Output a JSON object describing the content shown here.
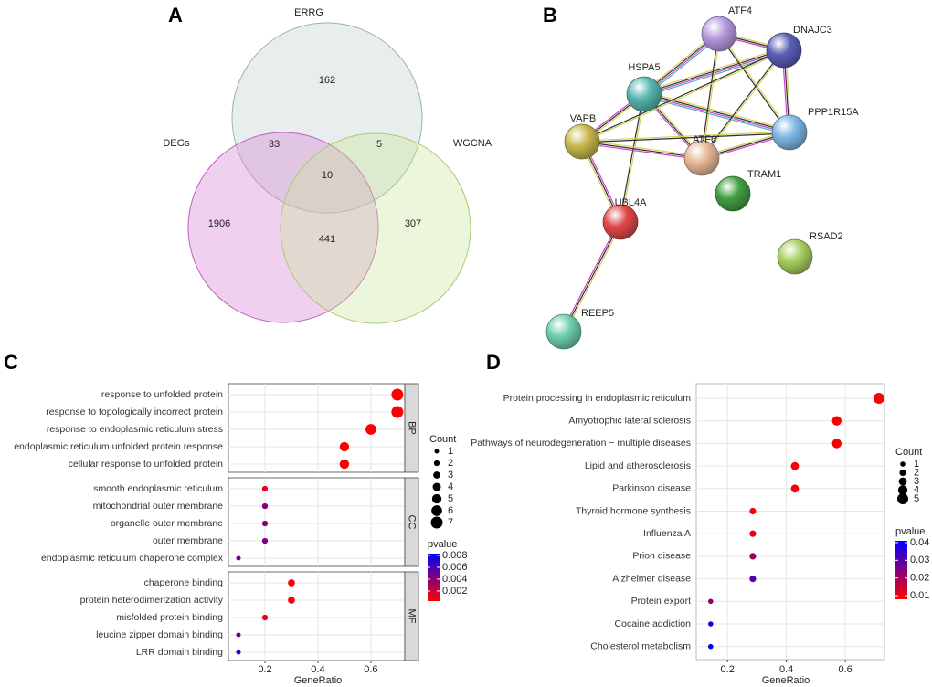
{
  "chart_data": [
    {
      "type": "venn",
      "panel": "A",
      "sets": [
        "ERRG",
        "DEGs",
        "WGCNA"
      ],
      "values": [
        162,
        33,
        5,
        10,
        1906,
        441,
        307
      ]
    },
    {
      "type": "network",
      "panel": "B",
      "nodes": [
        "ATF4",
        "DNAJC3",
        "HSPA5",
        "PPP1R15A",
        "VAPB",
        "ATF6",
        "TRAM1",
        "UBL4A",
        "RSAD2",
        "REEP5"
      ]
    },
    {
      "type": "dot",
      "panel": "C",
      "facets": [
        {
          "name": "BP",
          "categories": [
            "response to unfolded protein",
            "response to topologically incorrect protein",
            "response to endoplasmic reticulum stress",
            "endoplasmic reticulum unfolded protein response",
            "cellular response to unfolded protein"
          ],
          "values": [
            0.7,
            0.7,
            0.6,
            0.5,
            0.5
          ],
          "counts": [
            7,
            7,
            6,
            5,
            5
          ],
          "pvalues": [
            0.0003,
            0.0004,
            0.0004,
            0.0005,
            0.0005
          ]
        },
        {
          "name": "CC",
          "categories": [
            "smooth endoplasmic reticulum",
            "mitochondrial outer membrane",
            "organelle outer membrane",
            "outer membrane",
            "endoplasmic reticulum chaperone complex"
          ],
          "values": [
            0.2,
            0.2,
            0.2,
            0.2,
            0.1
          ],
          "counts": [
            2,
            2,
            2,
            2,
            1
          ],
          "pvalues": [
            0.001,
            0.004,
            0.0042,
            0.0044,
            0.005
          ]
        },
        {
          "name": "MF",
          "categories": [
            "chaperone binding",
            "protein heterodimerization activity",
            "misfolded protein binding",
            "leucine zipper domain binding",
            "LRR domain binding"
          ],
          "values": [
            0.3,
            0.3,
            0.2,
            0.1,
            0.1
          ],
          "counts": [
            3,
            3,
            2,
            1,
            1
          ],
          "pvalues": [
            0.0004,
            0.0006,
            0.001,
            0.005,
            0.0082
          ]
        }
      ],
      "xlabel": "GeneRatio",
      "xlim": [
        0.062,
        0.728
      ],
      "xticks": [
        0.2,
        0.4,
        0.6
      ],
      "size_title": "Count",
      "size_ticks": [
        1,
        2,
        3,
        4,
        5,
        6,
        7
      ],
      "color_title": "pvalue",
      "clim": [
        0.0003,
        0.0083
      ],
      "cticks": [
        0.002,
        0.004,
        0.006,
        0.008
      ],
      "colors": [
        "#ff0000",
        "#0000ff"
      ],
      "grid": true
    },
    {
      "type": "dot",
      "panel": "D",
      "facets": [
        {
          "categories": [
            "Protein processing in endoplasmic reticulum",
            "Amyotrophic lateral sclerosis",
            "Pathways of neurodegeneration − multiple diseases",
            "Lipid and atherosclerosis",
            "Parkinson disease",
            "Thyroid hormone synthesis",
            "Influenza A",
            "Prion disease",
            "Alzheimer disease",
            "Protein export",
            "Cocaine addiction",
            "Cholesterol metabolism"
          ],
          "values": [
            0.714,
            0.571,
            0.571,
            0.429,
            0.429,
            0.286,
            0.286,
            0.286,
            0.286,
            0.143,
            0.143,
            0.143
          ],
          "counts": [
            5,
            4,
            4,
            3,
            3,
            2,
            2,
            2,
            2,
            1,
            1,
            1
          ],
          "pvalues": [
            0.0085,
            0.0086,
            0.0087,
            0.0088,
            0.0089,
            0.009,
            0.01,
            0.02,
            0.03,
            0.022,
            0.038,
            0.04
          ]
        }
      ],
      "xlabel": "GeneRatio",
      "xlim": [
        0.094,
        0.733
      ],
      "xticks": [
        0.2,
        0.4,
        0.6
      ],
      "size_title": "Count",
      "size_ticks": [
        1,
        2,
        3,
        4,
        5
      ],
      "color_title": "pvalue",
      "clim": [
        0.008,
        0.041
      ],
      "cticks": [
        0.01,
        0.02,
        0.03,
        0.04
      ],
      "colors": [
        "#ff0000",
        "#0000ff"
      ],
      "grid": true
    }
  ]
}
